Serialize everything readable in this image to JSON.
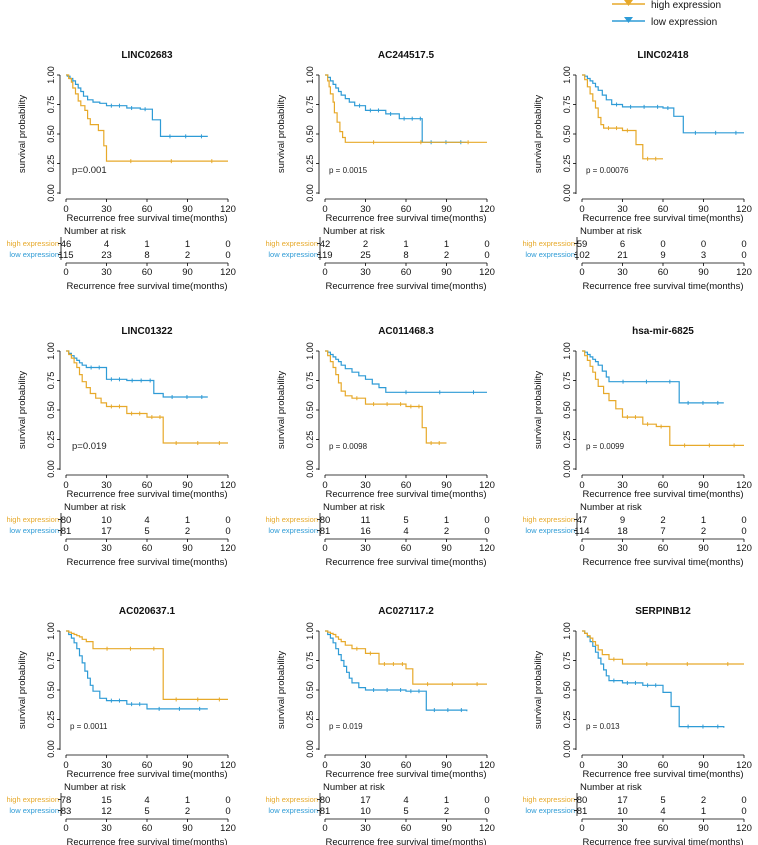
{
  "legend": {
    "items": [
      {
        "label": "high expression",
        "color": "#E7A92A"
      },
      {
        "label": "low expression",
        "color": "#2E9BD6"
      }
    ]
  },
  "common": {
    "ylabel": "survival probability",
    "xlabel": "Recurrence free survival time(months)",
    "x_ticks": [
      "0",
      "30",
      "60",
      "90",
      "120"
    ],
    "y_ticks": [
      "0.00",
      "0.25",
      "0.50",
      "0.75",
      "1.00"
    ],
    "risk_title": "Number at risk",
    "risk_labels": [
      "high expression",
      "low expression"
    ]
  },
  "chart_data": [
    {
      "type": "line",
      "title": "LINC02683",
      "pvalue": "p=0.001",
      "xlim": [
        0,
        120
      ],
      "ylim": [
        0,
        1
      ],
      "risk": {
        "high": [
          "46",
          "4",
          "1",
          "1",
          "0"
        ],
        "low": [
          "115",
          "23",
          "8",
          "2",
          "0"
        ]
      },
      "series": [
        {
          "name": "high expression",
          "x": [
            0,
            2,
            4,
            5,
            7,
            9,
            11,
            14,
            16,
            18,
            24,
            28,
            30,
            120
          ],
          "y": [
            1,
            0.97,
            0.94,
            0.89,
            0.84,
            0.78,
            0.74,
            0.7,
            0.63,
            0.58,
            0.53,
            0.4,
            0.27,
            0.27
          ]
        },
        {
          "name": "low expression",
          "x": [
            0,
            1,
            3,
            5,
            7,
            9,
            11,
            13,
            16,
            20,
            25,
            30,
            45,
            55,
            64,
            70,
            105
          ],
          "y": [
            1,
            0.99,
            0.97,
            0.95,
            0.92,
            0.89,
            0.86,
            0.82,
            0.79,
            0.77,
            0.76,
            0.74,
            0.72,
            0.71,
            0.62,
            0.48,
            0.48
          ]
        }
      ]
    },
    {
      "type": "line",
      "title": "AC244517.5",
      "pvalue": "p = 0.0015",
      "xlim": [
        0,
        120
      ],
      "ylim": [
        0,
        1
      ],
      "risk": {
        "high": [
          "42",
          "2",
          "1",
          "1",
          "0"
        ],
        "low": [
          "119",
          "25",
          "8",
          "2",
          "0"
        ]
      },
      "series": [
        {
          "name": "high expression",
          "x": [
            0,
            2,
            3,
            4,
            6,
            7,
            9,
            11,
            13,
            15,
            120
          ],
          "y": [
            1,
            0.95,
            0.9,
            0.84,
            0.77,
            0.68,
            0.6,
            0.52,
            0.47,
            0.43,
            0.43
          ]
        },
        {
          "name": "low expression",
          "x": [
            0,
            2,
            4,
            6,
            8,
            10,
            12,
            15,
            18,
            22,
            30,
            45,
            55,
            72,
            105
          ],
          "y": [
            1,
            0.98,
            0.95,
            0.92,
            0.89,
            0.86,
            0.83,
            0.8,
            0.77,
            0.74,
            0.7,
            0.67,
            0.63,
            0.43,
            0.43
          ]
        }
      ]
    },
    {
      "type": "line",
      "title": "LINC02418",
      "pvalue": "p = 0.00076",
      "xlim": [
        0,
        120
      ],
      "ylim": [
        0,
        1
      ],
      "risk": {
        "high": [
          "59",
          "6",
          "0",
          "0",
          "0"
        ],
        "low": [
          "102",
          "21",
          "9",
          "3",
          "0"
        ]
      },
      "series": [
        {
          "name": "high expression",
          "x": [
            0,
            2,
            4,
            6,
            8,
            10,
            12,
            14,
            16,
            30,
            40,
            45,
            60
          ],
          "y": [
            1,
            0.96,
            0.9,
            0.84,
            0.78,
            0.72,
            0.64,
            0.58,
            0.55,
            0.53,
            0.41,
            0.29,
            0.29
          ]
        },
        {
          "name": "low expression",
          "x": [
            0,
            2,
            4,
            6,
            8,
            10,
            12,
            15,
            18,
            22,
            30,
            60,
            68,
            75,
            120
          ],
          "y": [
            1,
            0.99,
            0.97,
            0.95,
            0.93,
            0.9,
            0.87,
            0.83,
            0.79,
            0.75,
            0.73,
            0.72,
            0.65,
            0.51,
            0.51
          ]
        }
      ]
    },
    {
      "type": "line",
      "title": "LINC01322",
      "pvalue": "p=0.019",
      "xlim": [
        0,
        120
      ],
      "ylim": [
        0,
        1
      ],
      "risk": {
        "high": [
          "80",
          "10",
          "4",
          "1",
          "0"
        ],
        "low": [
          "81",
          "17",
          "5",
          "2",
          "0"
        ]
      },
      "series": [
        {
          "name": "high expression",
          "x": [
            0,
            2,
            4,
            6,
            8,
            10,
            12,
            15,
            18,
            22,
            26,
            30,
            45,
            60,
            72,
            120
          ],
          "y": [
            1,
            0.97,
            0.94,
            0.9,
            0.86,
            0.8,
            0.74,
            0.69,
            0.64,
            0.6,
            0.56,
            0.53,
            0.47,
            0.44,
            0.22,
            0.22
          ]
        },
        {
          "name": "low expression",
          "x": [
            0,
            2,
            4,
            6,
            8,
            10,
            12,
            15,
            30,
            45,
            65,
            72,
            105
          ],
          "y": [
            1,
            0.98,
            0.96,
            0.94,
            0.92,
            0.9,
            0.88,
            0.86,
            0.76,
            0.75,
            0.64,
            0.61,
            0.61
          ]
        }
      ]
    },
    {
      "type": "line",
      "title": "AC011468.3",
      "pvalue": "p = 0.0098",
      "xlim": [
        0,
        120
      ],
      "ylim": [
        0,
        1
      ],
      "risk": {
        "high": [
          "80",
          "11",
          "5",
          "1",
          "0"
        ],
        "low": [
          "81",
          "16",
          "4",
          "2",
          "0"
        ]
      },
      "series": [
        {
          "name": "high expression",
          "x": [
            0,
            2,
            4,
            6,
            8,
            10,
            12,
            15,
            20,
            30,
            60,
            72,
            75,
            90
          ],
          "y": [
            1,
            0.96,
            0.91,
            0.86,
            0.8,
            0.73,
            0.66,
            0.62,
            0.6,
            0.55,
            0.53,
            0.35,
            0.22,
            0.22
          ]
        },
        {
          "name": "low expression",
          "x": [
            0,
            2,
            4,
            6,
            8,
            10,
            12,
            15,
            20,
            25,
            30,
            35,
            40,
            45,
            120
          ],
          "y": [
            1,
            0.99,
            0.97,
            0.95,
            0.93,
            0.91,
            0.88,
            0.85,
            0.82,
            0.79,
            0.76,
            0.72,
            0.69,
            0.65,
            0.65
          ]
        }
      ]
    },
    {
      "type": "line",
      "title": "hsa-mir-6825",
      "pvalue": "p = 0.0099",
      "xlim": [
        0,
        120
      ],
      "ylim": [
        0,
        1
      ],
      "risk": {
        "high": [
          "47",
          "9",
          "2",
          "1",
          "0"
        ],
        "low": [
          "114",
          "18",
          "7",
          "2",
          "0"
        ]
      },
      "series": [
        {
          "name": "high expression",
          "x": [
            0,
            2,
            4,
            6,
            8,
            10,
            12,
            16,
            20,
            25,
            30,
            45,
            55,
            65,
            120
          ],
          "y": [
            1,
            0.96,
            0.92,
            0.87,
            0.82,
            0.76,
            0.7,
            0.64,
            0.58,
            0.51,
            0.44,
            0.38,
            0.36,
            0.2,
            0.2
          ]
        },
        {
          "name": "low expression",
          "x": [
            0,
            2,
            4,
            6,
            8,
            10,
            12,
            15,
            18,
            20,
            72,
            105
          ],
          "y": [
            1,
            0.99,
            0.97,
            0.95,
            0.93,
            0.91,
            0.88,
            0.83,
            0.78,
            0.74,
            0.56,
            0.56
          ]
        }
      ]
    },
    {
      "type": "line",
      "title": "AC020637.1",
      "pvalue": "p = 0.0011",
      "xlim": [
        0,
        120
      ],
      "ylim": [
        0,
        1
      ],
      "risk": {
        "high": [
          "78",
          "15",
          "4",
          "1",
          "0"
        ],
        "low": [
          "83",
          "12",
          "5",
          "2",
          "0"
        ]
      },
      "series": [
        {
          "name": "high expression",
          "x": [
            0,
            2,
            4,
            6,
            8,
            10,
            12,
            15,
            20,
            72,
            120
          ],
          "y": [
            1,
            0.99,
            0.98,
            0.97,
            0.96,
            0.95,
            0.93,
            0.91,
            0.85,
            0.42,
            0.42
          ]
        },
        {
          "name": "low expression",
          "x": [
            0,
            2,
            4,
            6,
            8,
            10,
            12,
            14,
            16,
            18,
            20,
            25,
            30,
            45,
            60,
            105
          ],
          "y": [
            1,
            0.97,
            0.94,
            0.9,
            0.85,
            0.79,
            0.73,
            0.66,
            0.6,
            0.54,
            0.49,
            0.43,
            0.41,
            0.38,
            0.34,
            0.34
          ]
        }
      ]
    },
    {
      "type": "line",
      "title": "AC027117.2",
      "pvalue": "p = 0.019",
      "xlim": [
        0,
        120
      ],
      "ylim": [
        0,
        1
      ],
      "risk": {
        "high": [
          "80",
          "17",
          "4",
          "1",
          "0"
        ],
        "low": [
          "81",
          "10",
          "5",
          "2",
          "0"
        ]
      },
      "series": [
        {
          "name": "high expression",
          "x": [
            0,
            2,
            4,
            6,
            8,
            10,
            12,
            15,
            20,
            30,
            40,
            60,
            65,
            120
          ],
          "y": [
            1,
            0.99,
            0.98,
            0.97,
            0.95,
            0.93,
            0.91,
            0.88,
            0.85,
            0.81,
            0.72,
            0.68,
            0.55,
            0.55
          ]
        },
        {
          "name": "low expression",
          "x": [
            0,
            2,
            4,
            6,
            8,
            10,
            12,
            14,
            16,
            18,
            20,
            25,
            30,
            60,
            75,
            105
          ],
          "y": [
            1,
            0.97,
            0.94,
            0.9,
            0.85,
            0.8,
            0.75,
            0.7,
            0.65,
            0.6,
            0.56,
            0.52,
            0.5,
            0.49,
            0.33,
            0.32
          ]
        }
      ]
    },
    {
      "type": "line",
      "title": "SERPINB12",
      "pvalue": "p = 0.013",
      "xlim": [
        0,
        120
      ],
      "ylim": [
        0,
        1
      ],
      "risk": {
        "high": [
          "80",
          "17",
          "5",
          "2",
          "0"
        ],
        "low": [
          "81",
          "10",
          "4",
          "1",
          "0"
        ]
      },
      "series": [
        {
          "name": "high expression",
          "x": [
            0,
            2,
            4,
            6,
            8,
            10,
            12,
            15,
            20,
            30,
            120
          ],
          "y": [
            1,
            0.98,
            0.96,
            0.94,
            0.91,
            0.88,
            0.84,
            0.8,
            0.76,
            0.72,
            0.72
          ]
        },
        {
          "name": "low expression",
          "x": [
            0,
            2,
            4,
            6,
            8,
            10,
            12,
            14,
            16,
            18,
            20,
            30,
            45,
            60,
            66,
            72,
            105
          ],
          "y": [
            1,
            0.98,
            0.95,
            0.91,
            0.87,
            0.82,
            0.77,
            0.72,
            0.67,
            0.62,
            0.58,
            0.56,
            0.54,
            0.48,
            0.36,
            0.19,
            0.18
          ]
        }
      ]
    }
  ]
}
